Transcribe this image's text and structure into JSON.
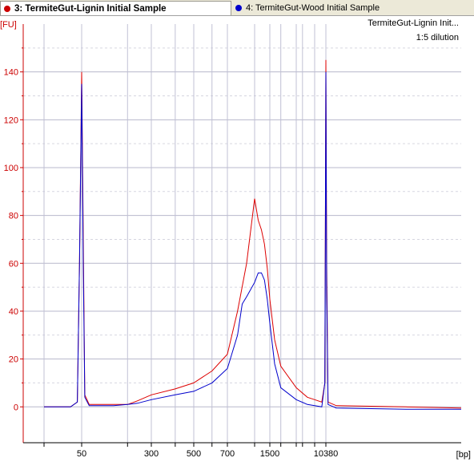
{
  "tabs": [
    {
      "label": "3: TermiteGut-Lignin Initial Sample",
      "color": "#cc0000",
      "active": true
    },
    {
      "label": "4: TermiteGut-Wood Initial Sample",
      "color": "#0000cc",
      "active": false
    }
  ],
  "annotation": {
    "line1": "TermiteGut-Lignin Init...",
    "line2": "1:5 dilution"
  },
  "chart_data": {
    "type": "line",
    "xlabel": "[bp]",
    "ylabel": "[FU]",
    "ylim": [
      -15,
      160
    ],
    "y_ticks": [
      0,
      20,
      40,
      60,
      80,
      100,
      120,
      140
    ],
    "x_axis_scale": "ladder (log-like, nonlinear)",
    "x_ticks": [
      "50",
      "300",
      "500",
      "700",
      "1500",
      "10380"
    ],
    "ladder_bp": [
      35,
      50,
      150,
      300,
      400,
      500,
      600,
      700,
      1000,
      1500,
      2000,
      3000,
      4000,
      7000,
      10380
    ],
    "grid": true,
    "series": [
      {
        "name": "3: TermiteGut-Lignin Initial Sample",
        "color": "#dd0000",
        "points": [
          [
            35,
            0
          ],
          [
            40,
            0
          ],
          [
            45,
            0
          ],
          [
            48,
            2
          ],
          [
            49,
            60
          ],
          [
            50,
            140
          ],
          [
            51,
            70
          ],
          [
            52,
            5
          ],
          [
            55,
            1
          ],
          [
            100,
            1
          ],
          [
            150,
            1
          ],
          [
            200,
            2.5
          ],
          [
            300,
            5
          ],
          [
            400,
            7.5
          ],
          [
            500,
            10
          ],
          [
            600,
            15
          ],
          [
            700,
            22
          ],
          [
            800,
            40
          ],
          [
            900,
            60
          ],
          [
            1000,
            87
          ],
          [
            1100,
            78
          ],
          [
            1200,
            74
          ],
          [
            1300,
            68
          ],
          [
            1400,
            58
          ],
          [
            1500,
            45
          ],
          [
            1700,
            28
          ],
          [
            2000,
            17
          ],
          [
            3000,
            8
          ],
          [
            5000,
            4
          ],
          [
            7000,
            3
          ],
          [
            9000,
            2
          ],
          [
            10000,
            10
          ],
          [
            10200,
            80
          ],
          [
            10380,
            145
          ],
          [
            10500,
            60
          ],
          [
            10700,
            2
          ],
          [
            12000,
            0.5
          ],
          [
            20000,
            0
          ],
          [
            30000,
            -0.5
          ]
        ]
      },
      {
        "name": "4: TermiteGut-Wood Initial Sample",
        "color": "#0000cc",
        "points": [
          [
            35,
            0
          ],
          [
            40,
            0
          ],
          [
            45,
            0
          ],
          [
            48,
            2
          ],
          [
            49,
            60
          ],
          [
            50,
            135
          ],
          [
            51,
            60
          ],
          [
            52,
            4
          ],
          [
            55,
            0.5
          ],
          [
            100,
            0.5
          ],
          [
            150,
            1
          ],
          [
            200,
            1.5
          ],
          [
            300,
            3
          ],
          [
            400,
            5
          ],
          [
            500,
            6.5
          ],
          [
            600,
            10
          ],
          [
            700,
            16
          ],
          [
            800,
            30
          ],
          [
            850,
            43
          ],
          [
            900,
            46
          ],
          [
            1000,
            52
          ],
          [
            1100,
            56
          ],
          [
            1200,
            56
          ],
          [
            1300,
            53
          ],
          [
            1400,
            45
          ],
          [
            1500,
            35
          ],
          [
            1700,
            18
          ],
          [
            2000,
            8
          ],
          [
            3000,
            3
          ],
          [
            5000,
            1
          ],
          [
            7000,
            0.5
          ],
          [
            9000,
            0
          ],
          [
            10000,
            10
          ],
          [
            10200,
            75
          ],
          [
            10380,
            140
          ],
          [
            10500,
            50
          ],
          [
            10700,
            1
          ],
          [
            12000,
            -0.5
          ],
          [
            20000,
            -1
          ],
          [
            30000,
            -1
          ]
        ]
      }
    ]
  }
}
